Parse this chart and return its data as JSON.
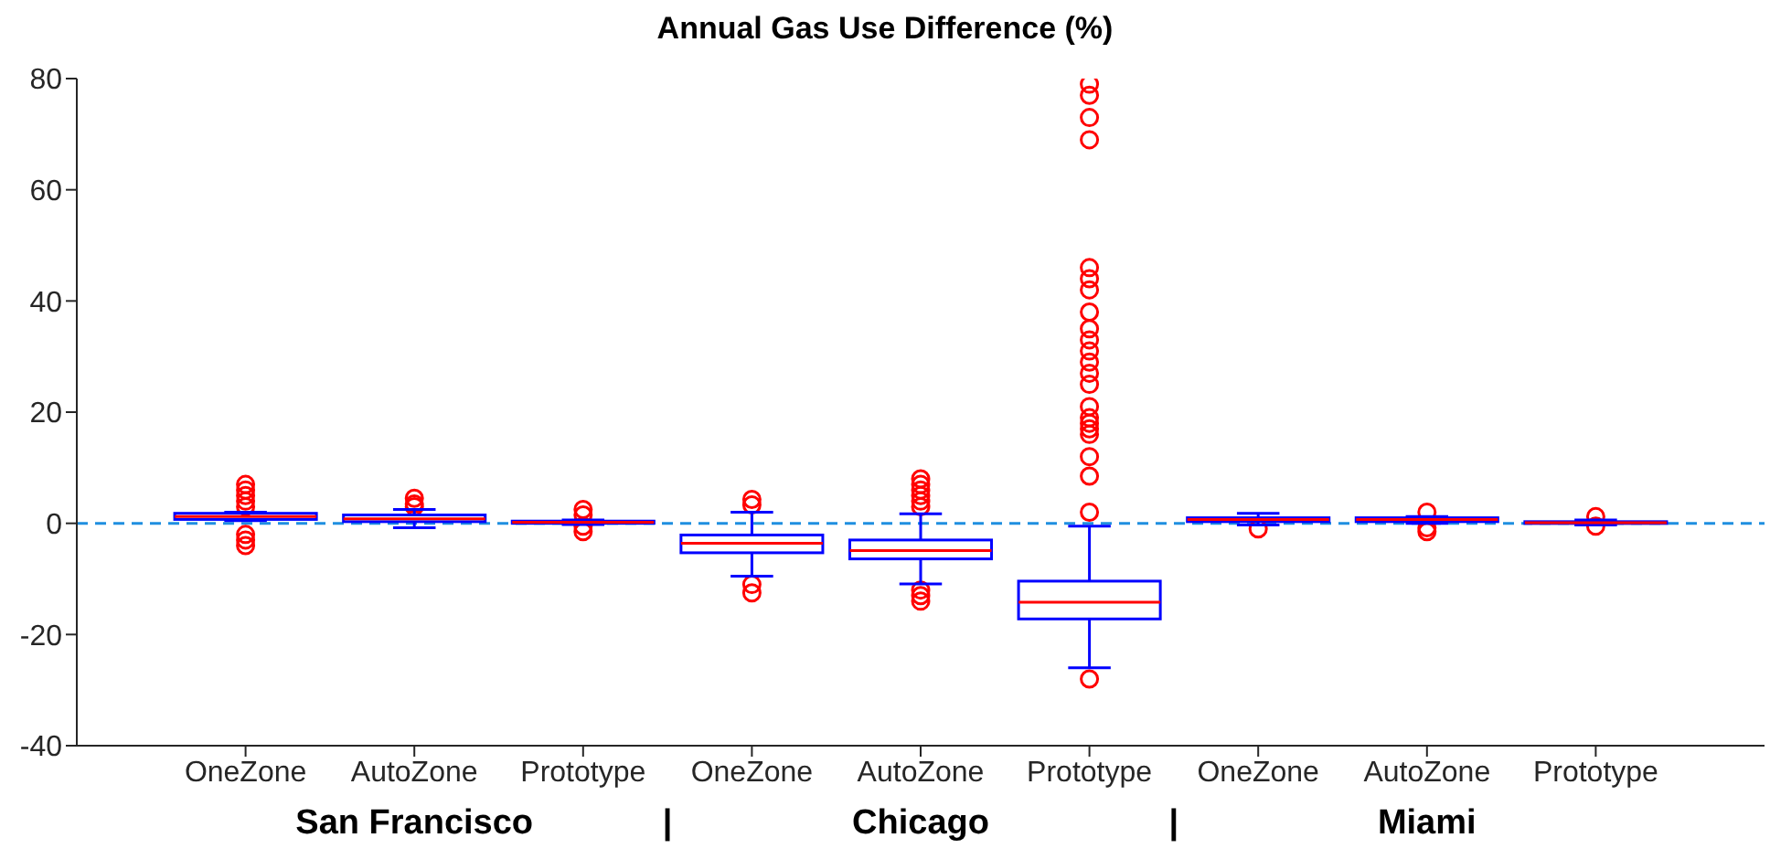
{
  "chart_data": {
    "type": "box",
    "title": "Annual Gas Use Difference (%)",
    "categories": [
      "OneZone",
      "AutoZone",
      "Prototype",
      "OneZone",
      "AutoZone",
      "Prototype",
      "OneZone",
      "AutoZone",
      "Prototype"
    ],
    "ylim": [
      -40,
      80
    ],
    "yticks": [
      -40,
      -20,
      0,
      20,
      40,
      60,
      80
    ],
    "series": [
      {
        "color": "#0000ff",
        "boxes": [
          {
            "low": 0.5,
            "q1": 0.7,
            "median": 1.2,
            "q3": 1.8,
            "high": 2,
            "outliers": [
              7,
              6,
              5,
              4,
              3,
              -2,
              -3,
              -4
            ]
          },
          {
            "low": -0.8,
            "q1": 0.3,
            "median": 0.8,
            "q3": 1.5,
            "high": 2.5,
            "outliers": [
              3,
              3.5,
              4.5
            ]
          },
          {
            "low": -0.2,
            "q1": 0,
            "median": 0.2,
            "q3": 0.4,
            "high": 0.6,
            "outliers": [
              2.5,
              1.5,
              -0.5,
              -1.5
            ]
          },
          {
            "low": -9.5,
            "q1": -5.3,
            "median": -3.6,
            "q3": -2.1,
            "high": 2,
            "outliers": [
              4.3,
              3.3,
              -11,
              -12.5
            ]
          },
          {
            "low": -10.9,
            "q1": -6.4,
            "median": -4.9,
            "q3": -3,
            "high": 1.7,
            "outliers": [
              3,
              4,
              5,
              6,
              7,
              8,
              -12,
              -13,
              -14
            ]
          },
          {
            "low": -26,
            "q1": -17.2,
            "median": -14.2,
            "q3": -10.4,
            "high": -0.5,
            "outliers": [
              2,
              8.5,
              12,
              16,
              17,
              18,
              19,
              21,
              25,
              27,
              29,
              31,
              33,
              35,
              38,
              42,
              44,
              46,
              69,
              73,
              77,
              79,
              -28
            ]
          },
          {
            "low": -0.3,
            "q1": 0.3,
            "median": 0.7,
            "q3": 1,
            "high": 1.8,
            "outliers": [
              -1
            ]
          },
          {
            "low": 0,
            "q1": 0.3,
            "median": 0.7,
            "q3": 1,
            "high": 1.2,
            "outliers": [
              2,
              -0.8,
              -1.5
            ]
          },
          {
            "low": -0.3,
            "q1": 0,
            "median": 0.1,
            "q3": 0.3,
            "high": 0.6,
            "outliers": [
              1.2,
              -0.5
            ]
          }
        ]
      }
    ],
    "ref_lines": [
      {
        "axis": "y",
        "value": 0,
        "color": "#1f8fe0",
        "line_style": "dashed"
      }
    ],
    "annotations": [
      "San Francisco",
      "|",
      "Chicago",
      "|",
      "Miami"
    ]
  }
}
